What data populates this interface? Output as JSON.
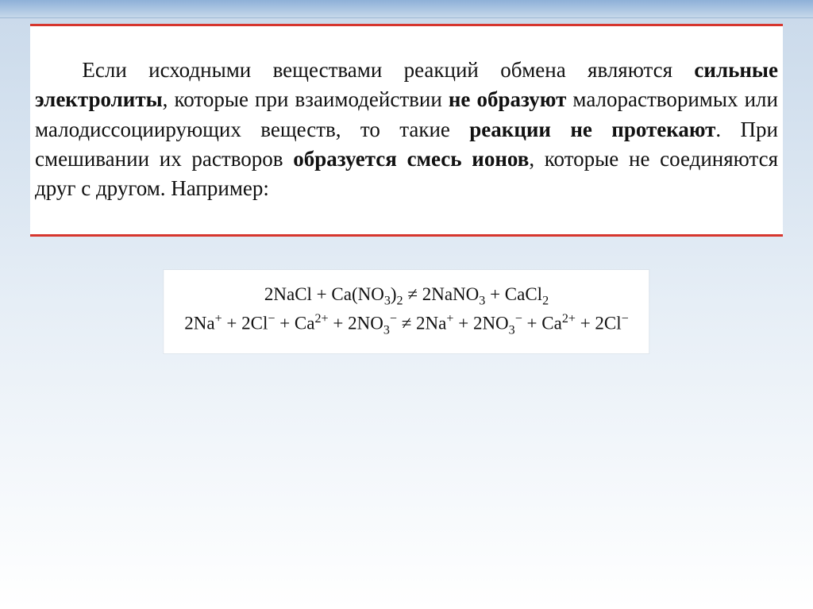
{
  "colors": {
    "background_gradient_top": "#c9d9ea",
    "background_gradient_mid": "#e6eef6",
    "background_gradient_bottom": "#ffffff",
    "top_stripe_top": "#8eb0d8",
    "top_stripe_bottom": "#c6d8ea",
    "rule_red": "#d6362e",
    "text": "#111111",
    "box_bg": "#ffffff"
  },
  "typography": {
    "body_font": "Times New Roman",
    "para_fontsize_pt": 20,
    "eq_fontsize_pt": 17,
    "para_line_height": 1.38,
    "text_indent_em": 2.2
  },
  "paragraph": {
    "seg1": "Если исходными веществами реакций обмена являются ",
    "seg2_bold": "сильные электролиты",
    "seg3": ", которые при взаимодействии ",
    "seg4_bold": "не об­разуют",
    "seg5": " малорастворимых или малодиссоциирующих ве­ществ, то такие ",
    "seg6_bold": "реакции не протекают",
    "seg7": ". При смешивании их растворов ",
    "seg8_bold": "образуется смесь ионов",
    "seg9": ", которые не соединяются друг с другом. Например:"
  },
  "equations": {
    "line1_html": "2NaCl + Ca(NO<span class='sub'>3</span>)<span class='sub'>2</span> ≠ 2NaNO<span class='sub'>3</span> + CaCl<span class='sub'>2</span>",
    "line2_html": "2Na<span class='sup'>+</span> + 2Cl<span class='sup'>−</span> + Ca<span class='sup'>2+</span> + 2NO<span class='sub'>3</span><span class='sup'>−</span> ≠ 2Na<span class='sup'>+</span> + 2NO<span class='sub'>3</span><span class='sup'>−</span> + Ca<span class='sup'>2+</span> + 2Cl<span class='sup'>−</span>"
  }
}
